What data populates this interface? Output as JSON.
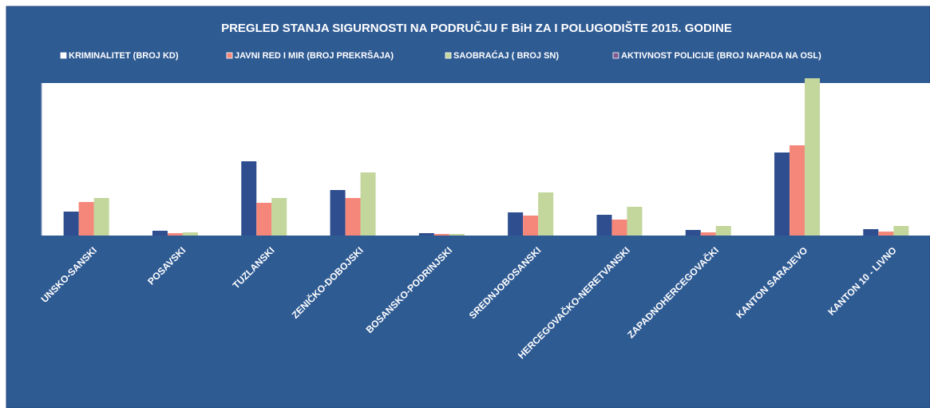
{
  "chart_data": {
    "type": "bar",
    "title": "PREGLED STANJA SIGURNOSTI NA PODRUČJU F BiH ZA I POLUGODIŠTE 2015. GODINE",
    "categories": [
      "UNSKO-SANSKI",
      "POSAVSKI",
      "TUZLANSKI",
      "ZENIČKO-DOBOJSKI",
      "BOSANSKO-PODRINJSKI",
      "SREDNJOBOSANSKI",
      "HERCEGOVAČKO-NERETVANSKI",
      "ZAPADNOHERCEGOVAČKI",
      "KANTON SARAJEVO",
      "KANTON 10 - LIVNO"
    ],
    "series": [
      {
        "name": "KRIMINALITET (BROJ KD)",
        "color": "#2e4e8f",
        "values": [
          30,
          6,
          93,
          57,
          3,
          29,
          26,
          7,
          104,
          8
        ]
      },
      {
        "name": "JAVNI RED I MIR (BROJ PREKRŠAJA)",
        "color": "#f4877a",
        "values": [
          42,
          3,
          41,
          47,
          2,
          25,
          20,
          4,
          113,
          5
        ]
      },
      {
        "name": "SAOBRAĆAJ ( BROJ SN)",
        "color": "#c3d69b",
        "values": [
          47,
          4,
          47,
          79,
          2,
          54,
          36,
          12,
          197,
          12
        ]
      },
      {
        "name": "AKTIVNOST POLICIJE (BROJ NAPADA NA OSL)",
        "color": "#7e5a8e",
        "values": [
          0,
          0,
          0,
          0,
          0,
          0,
          0,
          0,
          0,
          0
        ]
      }
    ],
    "ylim": [
      0,
      200
    ],
    "legend": "top"
  }
}
